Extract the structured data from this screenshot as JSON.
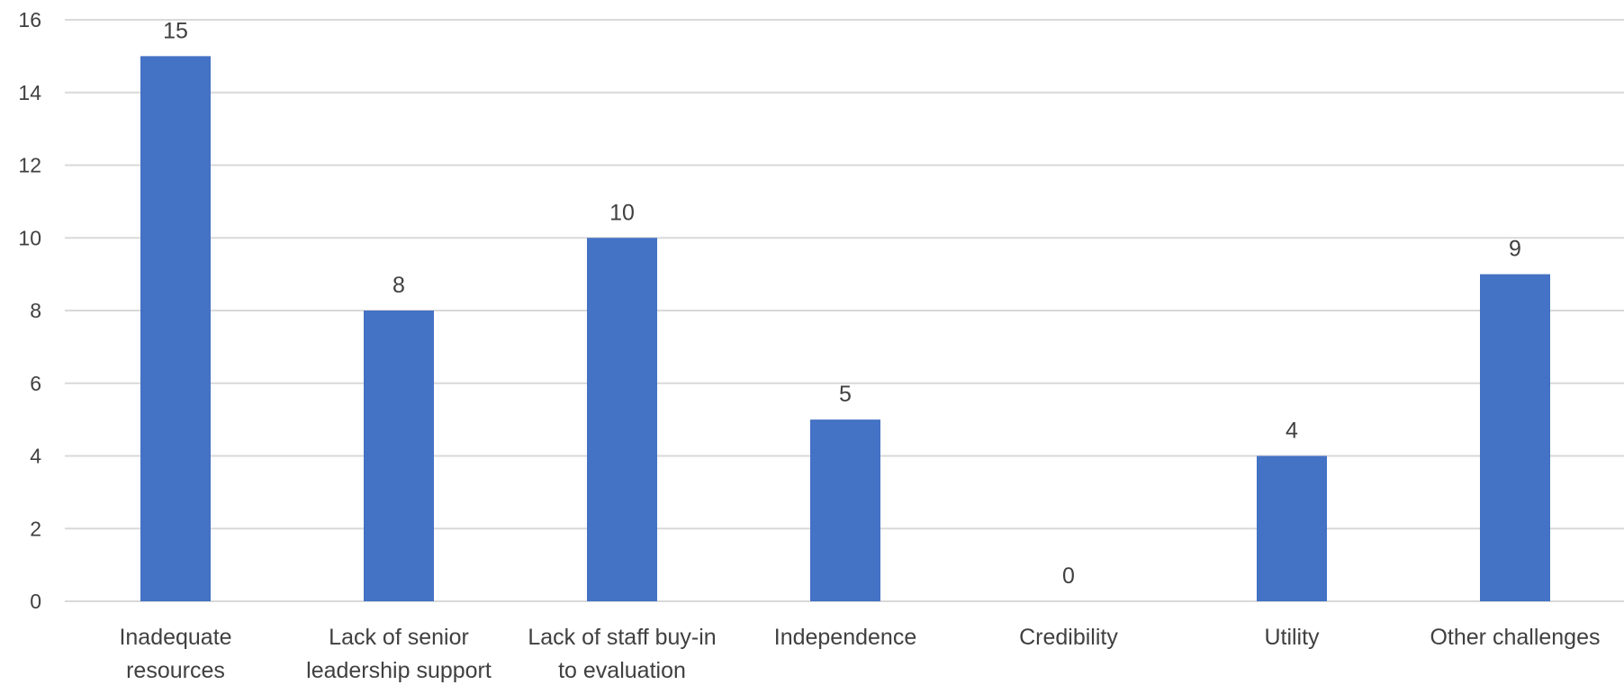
{
  "chart_data": {
    "type": "bar",
    "categories": [
      [
        "Inadequate",
        "resources"
      ],
      [
        "Lack of senior",
        "leadership support"
      ],
      [
        "Lack of staff buy-in",
        "to evaluation"
      ],
      [
        "Independence"
      ],
      [
        "Credibility"
      ],
      [
        "Utility"
      ],
      [
        "Other challenges"
      ]
    ],
    "values": [
      15,
      8,
      10,
      5,
      0,
      4,
      9
    ],
    "ylim": [
      0,
      16
    ],
    "yticks": [
      0,
      2,
      4,
      6,
      8,
      10,
      12,
      14,
      16
    ],
    "grid": true,
    "data_labels": true,
    "colors": {
      "bar": "#4472c4",
      "grid": "#d9d9d9",
      "text": "#404040"
    }
  }
}
